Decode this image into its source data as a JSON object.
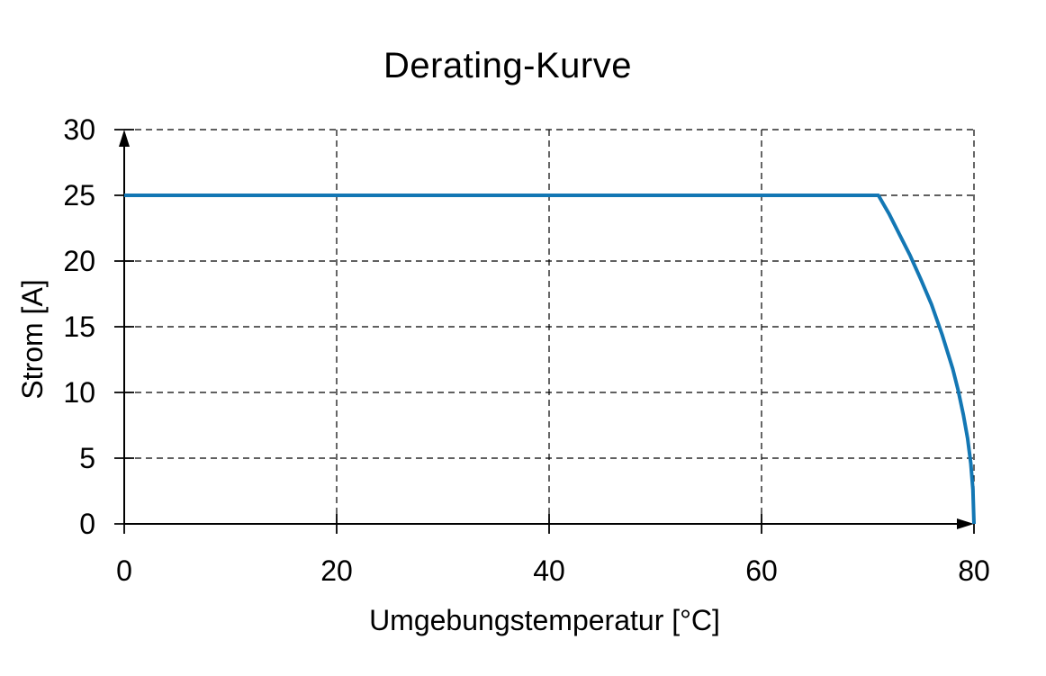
{
  "page": {
    "background_color": "#ffffff",
    "text_color": "#000000"
  },
  "chart_data": {
    "type": "line",
    "title": "Derating-Kurve",
    "xlabel": "Umgebungstemperatur [°C]",
    "ylabel": "Strom [A]",
    "xlim": [
      0,
      80
    ],
    "ylim": [
      0,
      30
    ],
    "xticks": [
      0,
      20,
      40,
      60,
      80
    ],
    "yticks": [
      0,
      5,
      10,
      15,
      20,
      25,
      30
    ],
    "grid": "dashed",
    "legend_position": "none",
    "axis_style": "arrows-on-x-and-y",
    "series": [
      {
        "name": "Strom",
        "color": "#1377b4",
        "points": [
          [
            0,
            25
          ],
          [
            71,
            25
          ],
          [
            72,
            23.6
          ],
          [
            73,
            22.0
          ],
          [
            74,
            20.4
          ],
          [
            75,
            18.6
          ],
          [
            76,
            16.7
          ],
          [
            77,
            14.4
          ],
          [
            78,
            11.8
          ],
          [
            78.5,
            10.2
          ],
          [
            79,
            8.3
          ],
          [
            79.4,
            6.5
          ],
          [
            79.7,
            4.6
          ],
          [
            79.9,
            2.6
          ],
          [
            80,
            0
          ]
        ]
      }
    ]
  }
}
